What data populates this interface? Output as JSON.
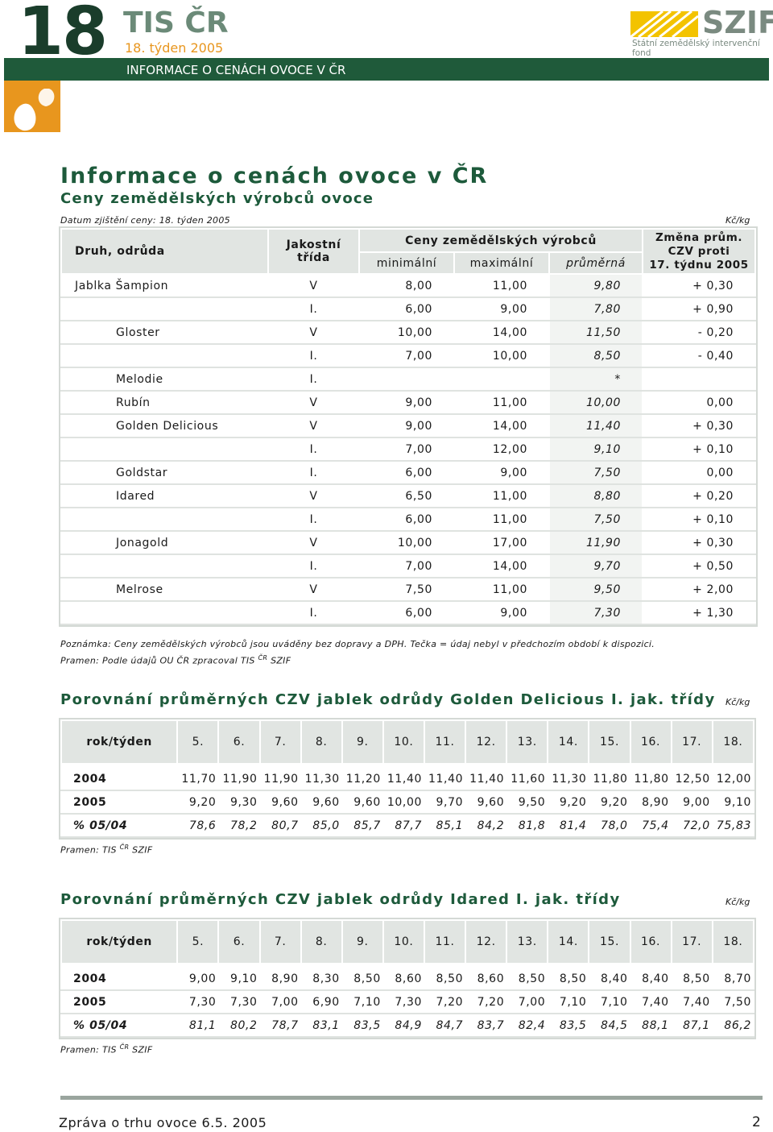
{
  "header": {
    "number": "18",
    "brand": "TIS ČR",
    "week": "18. týden 2005",
    "logo": "SZIF",
    "logo_sub": "Státní zemědělský intervenční fond",
    "banner": "INFORMACE O CENÁCH OVOCE V ČR"
  },
  "title": "Informace o cenách ovoce v ČR",
  "subtitle": "Ceny zemědělských výrobců ovoce",
  "table": {
    "date_note": "Datum zjištění ceny: 18. týden 2005",
    "unit": "Kč/kg",
    "headers": {
      "variety": "Druh, odrůda",
      "class": [
        "Jakostní",
        "třída"
      ],
      "prices": "Ceny zemědělských výrobců",
      "min": "minimální",
      "max": "maximální",
      "avg": "průměrná",
      "change": [
        "Změna prům.",
        "CZV proti",
        "17. týdnu 2005"
      ]
    },
    "rows": [
      [
        "Jablka Šampion",
        "V",
        "8,00",
        "11,00",
        "9,80",
        "+ 0,30"
      ],
      [
        null,
        "I.",
        "6,00",
        "9,00",
        "7,80",
        "+ 0,90"
      ],
      [
        "Gloster",
        "V",
        "10,00",
        "14,00",
        "11,50",
        "- 0,20"
      ],
      [
        null,
        "I.",
        "7,00",
        "10,00",
        "8,50",
        "- 0,40"
      ],
      [
        "Melodie",
        "I.",
        null,
        null,
        "*",
        null
      ],
      [
        "Rubín",
        "V",
        "9,00",
        "11,00",
        "10,00",
        "0,00"
      ],
      [
        "Golden Delicious",
        "V",
        "9,00",
        "14,00",
        "11,40",
        "+ 0,30"
      ],
      [
        null,
        "I.",
        "7,00",
        "12,00",
        "9,10",
        "+ 0,10"
      ],
      [
        "Goldstar",
        "I.",
        "6,00",
        "9,00",
        "7,50",
        "0,00"
      ],
      [
        "Idared",
        "V",
        "6,50",
        "11,00",
        "8,80",
        "+ 0,20"
      ],
      [
        null,
        "I.",
        "6,00",
        "11,00",
        "7,50",
        "+ 0,10"
      ],
      [
        "Jonagold",
        "V",
        "10,00",
        "17,00",
        "11,90",
        "+ 0,30"
      ],
      [
        null,
        "I.",
        "7,00",
        "14,00",
        "9,70",
        "+ 0,50"
      ],
      [
        "Melrose",
        "V",
        "7,50",
        "11,00",
        "9,50",
        "+ 2,00"
      ],
      [
        null,
        "I.",
        "6,00",
        "9,00",
        "7,30",
        "+ 1,30"
      ]
    ],
    "note": "Poznámka: Ceny zemědělských výrobců jsou uváděny bez dopravy a DPH. Tečka = údaj nebyl v předchozím období k dispozici.",
    "source": {
      "text": "Pramen: Podle údajů OU ČR zpracoval TIS",
      "sup": "ČR",
      "tail": "SZIF"
    }
  },
  "comparisons": [
    {
      "title": "Porovnání průměrných CZV jablek odrůdy Golden Delicious I. jak. třídy",
      "unit": "Kč/kg",
      "label": "rok/týden",
      "weeks": [
        "5.",
        "6.",
        "7.",
        "8.",
        "9.",
        "10.",
        "11.",
        "12.",
        "13.",
        "14.",
        "15.",
        "16.",
        "17.",
        "18."
      ],
      "rows": [
        {
          "label": "2004",
          "values": [
            "11,70",
            "11,90",
            "11,90",
            "11,30",
            "11,20",
            "11,40",
            "11,40",
            "11,40",
            "11,60",
            "11,30",
            "11,80",
            "11,80",
            "12,50",
            "12,00"
          ]
        },
        {
          "label": "2005",
          "values": [
            "9,20",
            "9,30",
            "9,60",
            "9,60",
            "9,60",
            "10,00",
            "9,70",
            "9,60",
            "9,50",
            "9,20",
            "9,20",
            "8,90",
            "9,00",
            "9,10"
          ]
        },
        {
          "label": "% 05/04",
          "values": [
            "78,6",
            "78,2",
            "80,7",
            "85,0",
            "85,7",
            "87,7",
            "85,1",
            "84,2",
            "81,8",
            "81,4",
            "78,0",
            "75,4",
            "72,0",
            "75,83"
          ]
        }
      ],
      "source": {
        "text": "Pramen: TIS",
        "sup": "ČR",
        "tail": "SZIF"
      }
    },
    {
      "title": "Porovnání průměrných CZV jablek odrůdy Idared I. jak. třídy",
      "unit": "Kč/kg",
      "label": "rok/týden",
      "weeks": [
        "5.",
        "6.",
        "7.",
        "8.",
        "9.",
        "10.",
        "11.",
        "12.",
        "13.",
        "14.",
        "15.",
        "16.",
        "17.",
        "18."
      ],
      "rows": [
        {
          "label": "2004",
          "values": [
            "9,00",
            "9,10",
            "8,90",
            "8,30",
            "8,50",
            "8,60",
            "8,50",
            "8,60",
            "8,50",
            "8,50",
            "8,40",
            "8,40",
            "8,50",
            "8,70"
          ]
        },
        {
          "label": "2005",
          "values": [
            "7,30",
            "7,30",
            "7,00",
            "6,90",
            "7,10",
            "7,30",
            "7,20",
            "7,20",
            "7,00",
            "7,10",
            "7,10",
            "7,40",
            "7,40",
            "7,50"
          ]
        },
        {
          "label": "% 05/04",
          "values": [
            "81,1",
            "80,2",
            "78,7",
            "83,1",
            "83,5",
            "84,9",
            "84,7",
            "83,7",
            "82,4",
            "83,5",
            "84,5",
            "88,1",
            "87,1",
            "86,2"
          ]
        }
      ],
      "source": {
        "text": "Pramen: TIS",
        "sup": "ČR",
        "tail": "SZIF"
      }
    }
  ],
  "footer": {
    "text": "Zpráva o trhu ovoce 6.5. 2005",
    "page": "2"
  }
}
